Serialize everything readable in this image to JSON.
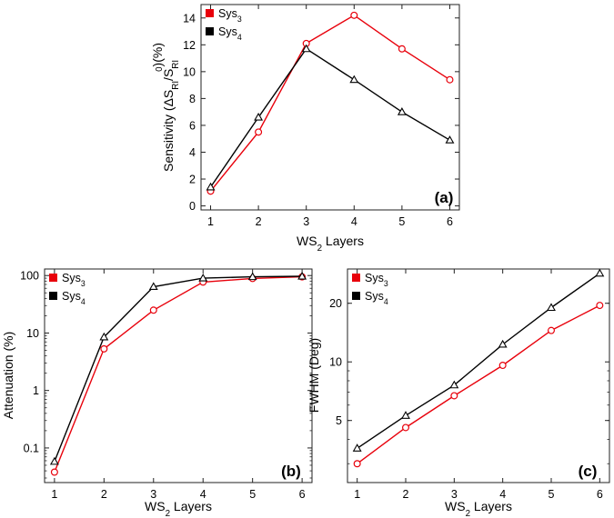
{
  "chart_data": [
    {
      "id": "a",
      "type": "line",
      "panel_label": "(a)",
      "title": "",
      "xlabel_main": "WS",
      "xlabel_sub": "2",
      "xlabel_tail": " Layers",
      "ylabel_parts": [
        {
          "t": "Sensitivity (ΔS"
        },
        {
          "t": "RI",
          "s": "sub"
        },
        {
          "t": "/S"
        },
        {
          "t": "RI",
          "s": "sub"
        },
        {
          "t": "0",
          "s": "sup"
        },
        {
          "t": ")(%)"
        }
      ],
      "x": [
        1,
        2,
        3,
        4,
        5,
        6
      ],
      "xlim": [
        0.8,
        6.2
      ],
      "ylim": [
        -0.3,
        15
      ],
      "yscale": "linear",
      "xticks": [
        1,
        2,
        3,
        4,
        5,
        6
      ],
      "yticks": [
        0,
        2,
        4,
        6,
        8,
        10,
        12,
        14
      ],
      "legend_position": "top-left",
      "series": [
        {
          "name_main": "Sys",
          "name_sub": "3",
          "color": "#e8000b",
          "marker": "circle",
          "values": [
            1.1,
            5.5,
            12.1,
            14.2,
            11.7,
            9.4
          ]
        },
        {
          "name_main": "Sys",
          "name_sub": "4",
          "color": "#000000",
          "marker": "triangle",
          "values": [
            1.4,
            6.6,
            11.7,
            9.4,
            7.0,
            4.9
          ]
        }
      ]
    },
    {
      "id": "b",
      "type": "line",
      "panel_label": "(b)",
      "title": "",
      "xlabel_main": "WS",
      "xlabel_sub": "2",
      "xlabel_tail": " Layers",
      "ylabel_parts": [
        {
          "t": "Attenuation (%)"
        }
      ],
      "x": [
        1,
        2,
        3,
        4,
        5,
        6
      ],
      "xlim": [
        0.8,
        6.2
      ],
      "ylim": [
        0.025,
        130
      ],
      "yscale": "log",
      "xticks": [
        1,
        2,
        3,
        4,
        5,
        6
      ],
      "yticks": [
        0.1,
        1,
        10,
        100
      ],
      "ytick_labels": [
        "0.1",
        "1",
        "10",
        "100"
      ],
      "legend_position": "top-left",
      "series": [
        {
          "name_main": "Sys",
          "name_sub": "3",
          "color": "#e8000b",
          "marker": "circle",
          "values": [
            0.038,
            5.3,
            25,
            77,
            89,
            95
          ]
        },
        {
          "name_main": "Sys",
          "name_sub": "4",
          "color": "#000000",
          "marker": "triangle",
          "values": [
            0.058,
            8.5,
            64,
            90,
            95,
            97
          ]
        }
      ]
    },
    {
      "id": "c",
      "type": "line",
      "panel_label": "(c)",
      "title": "",
      "xlabel_main": "WS",
      "xlabel_sub": "2",
      "xlabel_tail": " Layers",
      "ylabel_parts": [
        {
          "t": "FWHM (Deg)"
        }
      ],
      "x": [
        1,
        2,
        3,
        4,
        5,
        6
      ],
      "xlim": [
        0.8,
        6.2
      ],
      "ylim": [
        2.4,
        30
      ],
      "yscale": "log",
      "xticks": [
        1,
        2,
        3,
        4,
        5,
        6
      ],
      "yticks": [
        5,
        10,
        20
      ],
      "ytick_labels": [
        "5",
        "10",
        "20"
      ],
      "legend_position": "top-left",
      "series": [
        {
          "name_main": "Sys",
          "name_sub": "3",
          "color": "#e8000b",
          "marker": "circle",
          "values": [
            3.0,
            4.6,
            6.7,
            9.6,
            14.5,
            19.5
          ]
        },
        {
          "name_main": "Sys",
          "name_sub": "4",
          "color": "#000000",
          "marker": "triangle",
          "values": [
            3.6,
            5.3,
            7.6,
            12.3,
            19.0,
            28.5
          ]
        }
      ]
    }
  ]
}
